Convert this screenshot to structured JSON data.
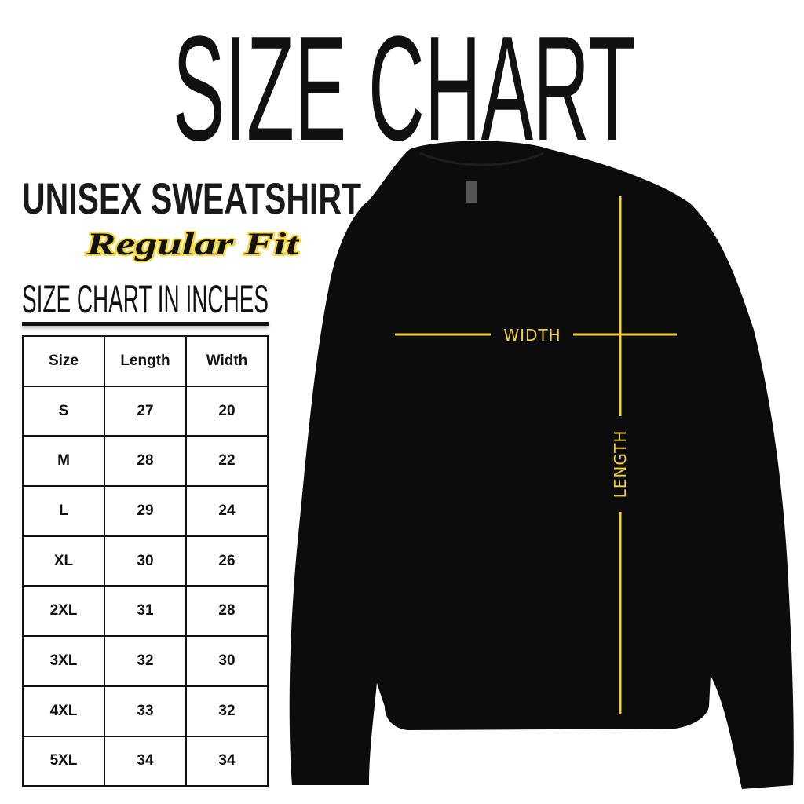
{
  "title": "SIZE CHART",
  "product": "UNISEX SWEATSHIRT",
  "fit": "Regular Fit",
  "subtitle": "SIZE CHART IN INCHES",
  "table": {
    "headers": [
      "Size",
      "Length",
      "Width"
    ],
    "rows": [
      [
        "S",
        "27",
        "20"
      ],
      [
        "M",
        "28",
        "22"
      ],
      [
        "L",
        "29",
        "24"
      ],
      [
        "XL",
        "30",
        "26"
      ],
      [
        "2XL",
        "31",
        "28"
      ],
      [
        "3XL",
        "32",
        "30"
      ],
      [
        "4XL",
        "33",
        "32"
      ],
      [
        "5XL",
        "34",
        "34"
      ]
    ]
  },
  "measure_labels": {
    "width": "WIDTH",
    "length": "LENGTH"
  },
  "colors": {
    "garment": "#0c0c0c",
    "measure": "#f2cf3c"
  }
}
